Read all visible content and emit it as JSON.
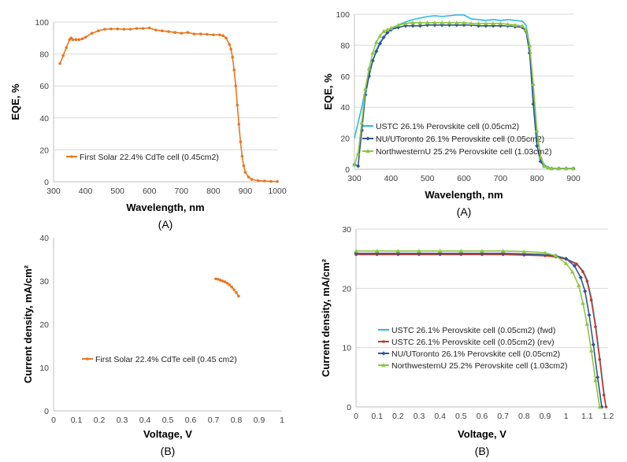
{
  "chart_data": [
    {
      "id": "tl",
      "type": "line",
      "xlabel": "Wavelength, nm",
      "ylabel": "EQE, %",
      "panel_label": "(A)",
      "xlim": [
        300,
        1000
      ],
      "ylim": [
        0,
        100
      ],
      "xticks": [
        300,
        400,
        500,
        600,
        700,
        800,
        900,
        1000
      ],
      "yticks": [
        0,
        20,
        40,
        60,
        80,
        100
      ],
      "grid": true,
      "legend_position": "center-left",
      "series": [
        {
          "name": "First Solar 22.4% CdTe cell (0.45cm2)",
          "color": "#E87722",
          "marker": "dot",
          "x": [
            320,
            330,
            340,
            350,
            355,
            360,
            370,
            380,
            390,
            400,
            420,
            440,
            460,
            480,
            500,
            520,
            540,
            560,
            580,
            600,
            620,
            640,
            660,
            680,
            700,
            720,
            740,
            760,
            780,
            800,
            820,
            830,
            840,
            850,
            855,
            860,
            865,
            870,
            875,
            880,
            885,
            890,
            895,
            900,
            910,
            920,
            940,
            960,
            980,
            1000
          ],
          "y": [
            74,
            79,
            84,
            89,
            90,
            89,
            89,
            89,
            89.5,
            90.5,
            93,
            94.5,
            95.5,
            95.7,
            95.7,
            95.5,
            95.5,
            96,
            96,
            96.3,
            95,
            94.5,
            94,
            93.5,
            93,
            93.5,
            92.5,
            92.5,
            92.3,
            92,
            92,
            91.5,
            90,
            86,
            83,
            78,
            70,
            60,
            48,
            36,
            25,
            16,
            10,
            6,
            3,
            1.5,
            0.8,
            0.5,
            0.3,
            0.2
          ]
        }
      ]
    },
    {
      "id": "tr",
      "type": "line",
      "xlabel": "Wavelength, nm",
      "ylabel": "EQE, %",
      "panel_label": "(A)",
      "xlim": [
        300,
        900
      ],
      "ylim": [
        0,
        100
      ],
      "xticks": [
        300,
        400,
        500,
        600,
        700,
        800,
        900
      ],
      "yticks": [
        0,
        20,
        40,
        60,
        80,
        100
      ],
      "grid": true,
      "legend_position": "center",
      "series": [
        {
          "name": "USTC 26.1% Perovskite cell (0.05cm2)",
          "color": "#2EB7E8",
          "marker": "none",
          "x": [
            300,
            310,
            320,
            330,
            340,
            350,
            360,
            370,
            380,
            390,
            400,
            420,
            440,
            460,
            480,
            500,
            520,
            540,
            560,
            580,
            600,
            620,
            640,
            660,
            680,
            700,
            720,
            740,
            760,
            770,
            780,
            790,
            800,
            810,
            820,
            830,
            840,
            860,
            880,
            900
          ],
          "y": [
            20,
            30,
            40,
            52,
            62,
            70,
            77,
            82,
            85,
            88,
            90,
            93,
            95,
            96.5,
            97.5,
            98.5,
            99,
            98.5,
            99,
            99.5,
            99.5,
            97,
            96.5,
            96,
            96.5,
            96,
            96.5,
            96,
            95.5,
            93,
            80,
            50,
            22,
            8,
            3,
            1,
            0.5,
            0.5,
            0.5,
            0.5
          ]
        },
        {
          "name": "NU/UToronto 26.1% Perovskite cell (0.05cm2)",
          "color": "#2F5597",
          "marker": "diamond",
          "x": [
            300,
            310,
            320,
            330,
            340,
            350,
            360,
            370,
            380,
            390,
            400,
            420,
            440,
            460,
            480,
            500,
            520,
            540,
            560,
            580,
            600,
            620,
            640,
            660,
            680,
            700,
            720,
            740,
            760,
            770,
            780,
            790,
            800,
            810,
            820,
            830,
            840,
            860,
            880,
            900
          ],
          "y": [
            3,
            2,
            25,
            48,
            60,
            70,
            76,
            81,
            85,
            88,
            90,
            91.5,
            92.5,
            92.5,
            92.5,
            93,
            93,
            93,
            93,
            93,
            93,
            93,
            92.5,
            92.5,
            92.5,
            92.5,
            92.5,
            92,
            91.5,
            89,
            75,
            42,
            15,
            5,
            2,
            1,
            0.5,
            0.5,
            0.5,
            0.5
          ]
        },
        {
          "name": "NorthwesternU 25.2% Perovskite cell (1.03cm2)",
          "color": "#8DC63F",
          "marker": "triangle",
          "x": [
            300,
            310,
            320,
            330,
            340,
            350,
            360,
            370,
            380,
            390,
            400,
            420,
            440,
            460,
            480,
            500,
            520,
            540,
            560,
            580,
            600,
            620,
            640,
            660,
            680,
            700,
            720,
            740,
            760,
            770,
            780,
            790,
            800,
            810,
            820,
            830,
            840,
            860,
            880,
            900
          ],
          "y": [
            3,
            10,
            30,
            52,
            65,
            75,
            82,
            86,
            89,
            90,
            91,
            93,
            94,
            94.5,
            94.5,
            94.5,
            94.5,
            94.5,
            94.5,
            94.5,
            94.5,
            94,
            94,
            94,
            94,
            94,
            93.5,
            93,
            92.5,
            90,
            80,
            55,
            25,
            8,
            2,
            1,
            0.5,
            0.5,
            0.5,
            0.5
          ]
        }
      ]
    },
    {
      "id": "bl",
      "type": "line",
      "xlabel": "Voltage, V",
      "ylabel": "Current density, mA/cm²",
      "panel_label": "(B)",
      "xlim": [
        0,
        1
      ],
      "ylim": [
        0,
        40
      ],
      "xticks": [
        0,
        0.1,
        0.2,
        0.3,
        0.4,
        0.5,
        0.6,
        0.7,
        0.8,
        0.9,
        1
      ],
      "yticks": [
        0,
        10,
        20,
        30,
        40
      ],
      "grid": false,
      "legend_position": "center-left",
      "series": [
        {
          "name": "First Solar 22.4% CdTe cell (0.45 cm2)",
          "color": "#E87722",
          "marker": "dot",
          "x": [
            0.71,
            0.72,
            0.73,
            0.74,
            0.75,
            0.76,
            0.77,
            0.78,
            0.79,
            0.8,
            0.81
          ],
          "y": [
            30.5,
            30.4,
            30.2,
            30.0,
            29.8,
            29.5,
            29.1,
            28.6,
            28.0,
            27.3,
            26.5
          ]
        }
      ]
    },
    {
      "id": "br",
      "type": "line",
      "xlabel": "Voltage, V",
      "ylabel": "Current density, mA/cm²",
      "panel_label": "(B)",
      "xlim": [
        0,
        1.2
      ],
      "ylim": [
        0,
        30
      ],
      "xticks": [
        0,
        0.1,
        0.2,
        0.3,
        0.4,
        0.5,
        0.6,
        0.7,
        0.8,
        0.9,
        1,
        1.1,
        1.2
      ],
      "yticks": [
        0,
        10,
        20,
        30
      ],
      "grid": true,
      "legend_position": "bottom-left",
      "series": [
        {
          "name": "USTC 26.1% Perovskite cell (0.05cm2) (fwd)",
          "color": "#2EB7E8",
          "marker": "none",
          "x": [
            0,
            0.1,
            0.2,
            0.3,
            0.4,
            0.5,
            0.6,
            0.7,
            0.8,
            0.9,
            0.95,
            1.0,
            1.05,
            1.08,
            1.1,
            1.12,
            1.14,
            1.16,
            1.18,
            1.19
          ],
          "y": [
            25.8,
            25.8,
            25.8,
            25.8,
            25.8,
            25.8,
            25.8,
            25.8,
            25.7,
            25.6,
            25.4,
            25.0,
            24.2,
            23.0,
            21.5,
            18.5,
            14.0,
            8.5,
            2.5,
            0
          ]
        },
        {
          "name": "USTC 26.1% Perovskite cell (0.05cm2) (rev)",
          "color": "#C0392B",
          "marker": "dot",
          "x": [
            0,
            0.1,
            0.2,
            0.3,
            0.4,
            0.5,
            0.6,
            0.7,
            0.8,
            0.9,
            0.95,
            1.0,
            1.05,
            1.08,
            1.1,
            1.12,
            1.14,
            1.16,
            1.18,
            1.19
          ],
          "y": [
            25.7,
            25.7,
            25.7,
            25.7,
            25.7,
            25.7,
            25.7,
            25.7,
            25.6,
            25.5,
            25.3,
            24.9,
            24.1,
            22.8,
            21.2,
            18.0,
            13.5,
            8.0,
            2.0,
            0
          ]
        },
        {
          "name": "NU/UToronto 26.1% Perovskite cell (0.05cm2)",
          "color": "#2F5597",
          "marker": "diamond",
          "x": [
            0,
            0.1,
            0.2,
            0.3,
            0.4,
            0.5,
            0.6,
            0.7,
            0.8,
            0.9,
            0.95,
            1.0,
            1.04,
            1.07,
            1.09,
            1.11,
            1.13,
            1.15,
            1.17
          ],
          "y": [
            25.9,
            25.9,
            25.9,
            25.9,
            25.9,
            25.9,
            25.9,
            25.9,
            25.8,
            25.7,
            25.5,
            25.0,
            23.8,
            21.8,
            19.5,
            15.5,
            10.5,
            5.0,
            0
          ]
        },
        {
          "name": "NorthwesternU 25.2% Perovskite cell (1.03cm2)",
          "color": "#8DC63F",
          "marker": "triangle",
          "x": [
            0,
            0.1,
            0.2,
            0.3,
            0.4,
            0.5,
            0.6,
            0.7,
            0.8,
            0.9,
            0.95,
            1.0,
            1.03,
            1.06,
            1.08,
            1.1,
            1.12,
            1.14,
            1.16
          ],
          "y": [
            26.3,
            26.3,
            26.3,
            26.3,
            26.3,
            26.3,
            26.3,
            26.3,
            26.2,
            26.0,
            25.5,
            24.2,
            22.8,
            20.5,
            17.5,
            14.0,
            9.5,
            4.5,
            0
          ]
        }
      ]
    }
  ]
}
